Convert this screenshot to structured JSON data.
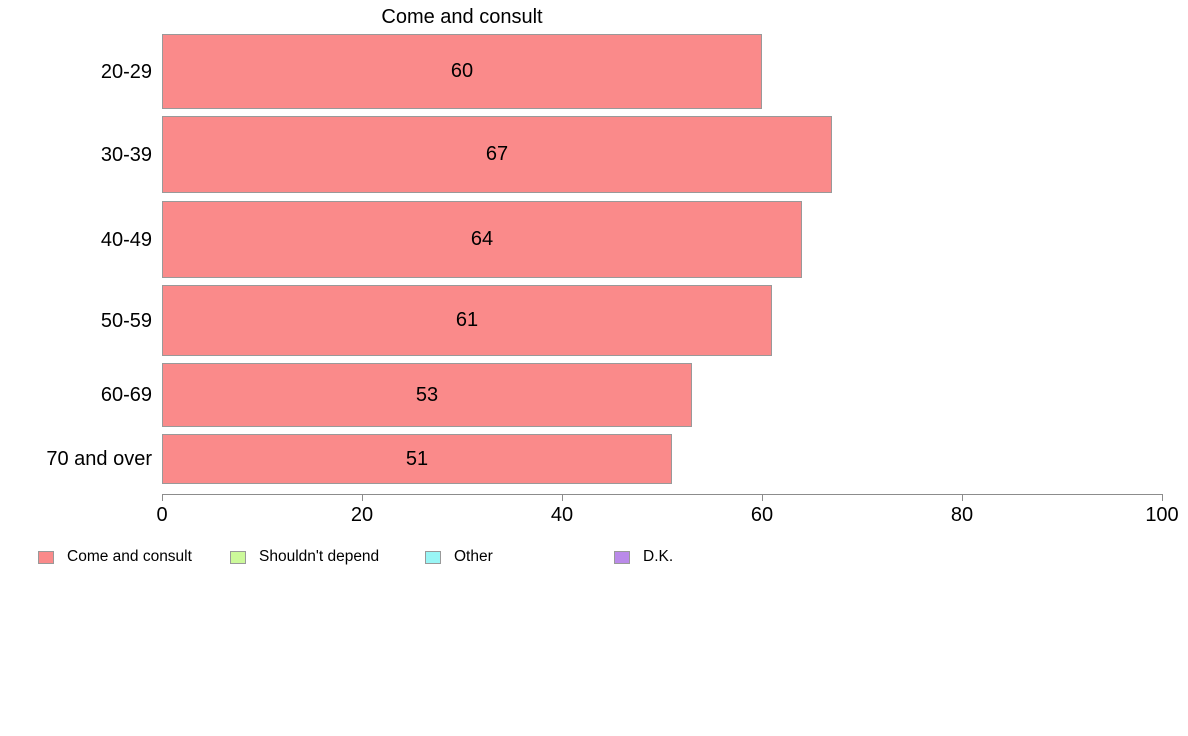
{
  "chart_data": {
    "type": "bar",
    "orientation": "horizontal",
    "title": "Come and consult",
    "categories": [
      "20-29",
      "30-39",
      "40-49",
      "50-59",
      "60-69",
      "70 and over"
    ],
    "values": [
      60,
      67,
      64,
      61,
      53,
      51
    ],
    "value_labels_shown": true,
    "xlabel": "",
    "ylabel": "",
    "xlim": [
      0,
      100
    ],
    "x_ticks": [
      0,
      20,
      40,
      60,
      80,
      100
    ],
    "grid": false,
    "bar_color": "#FA8A8A",
    "bar_border_color": "#999999",
    "axis_color": "#8c8c8c",
    "legend_position": "bottom",
    "legend": [
      {
        "label": "Come and consult",
        "color": "#FA8A8A"
      },
      {
        "label": "Shouldn't depend",
        "color": "#CCF99A"
      },
      {
        "label": "Other",
        "color": "#99F5F5"
      },
      {
        "label": "D.K.",
        "color": "#BA8AE9"
      }
    ]
  }
}
